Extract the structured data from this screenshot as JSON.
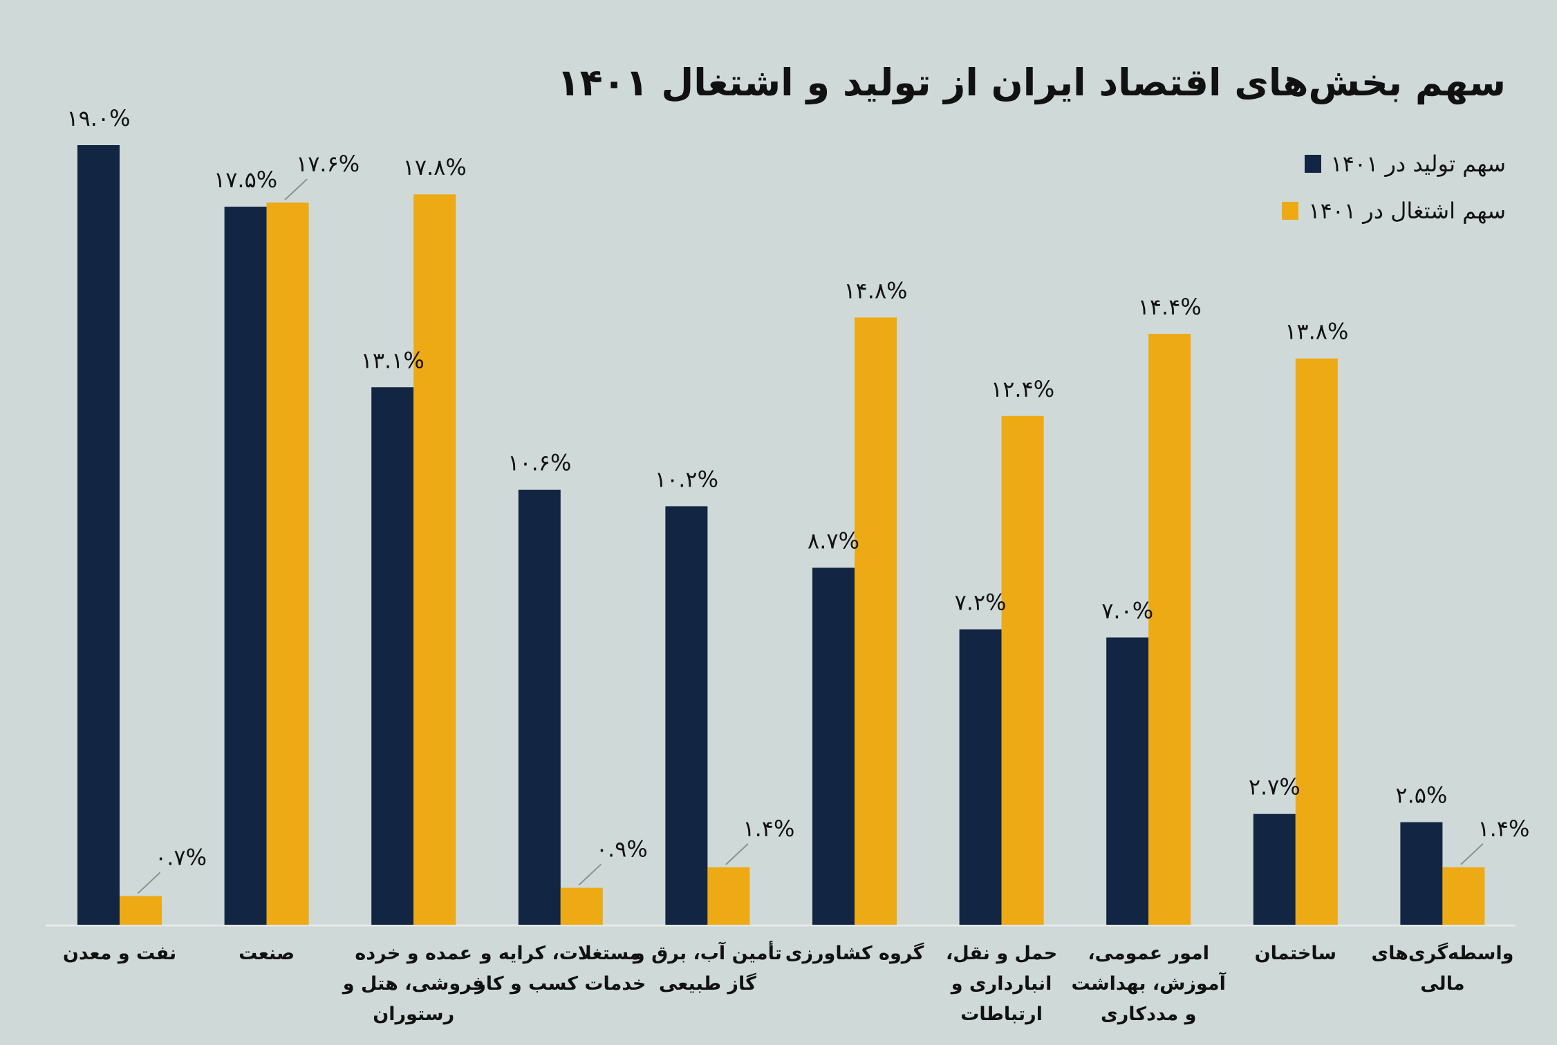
{
  "chart_data": {
    "type": "bar",
    "title": "سهم بخش‌های اقتصاد ایران از تولید و اشتغال ۱۴۰۱",
    "xlabel": "",
    "ylabel": "",
    "ylim": [
      0,
      19.0
    ],
    "grid": false,
    "legend_position": "top-right",
    "categories": [
      [
        "نفت و معدن"
      ],
      [
        "صنعت"
      ],
      [
        "عمده و خرده",
        "فروشی، هتل و",
        "رستوران"
      ],
      [
        "مستغلات، کرایه و",
        "خدمات کسب و کار"
      ],
      [
        "تأمین آب، برق و",
        "گاز طبیعی"
      ],
      [
        "گروه کشاورزی"
      ],
      [
        "حمل و نقل،",
        "انبارداری و",
        "ارتباطات"
      ],
      [
        "امور عمومی،",
        "آموزش، بهداشت",
        "و مددکاری"
      ],
      [
        "ساختمان"
      ],
      [
        "واسطه‌گری‌های",
        "مالی"
      ]
    ],
    "series": [
      {
        "name": "سهم تولید در ۱۴۰۱",
        "color": "#122542",
        "values": [
          19.0,
          17.5,
          13.1,
          10.6,
          10.2,
          8.7,
          7.2,
          7.0,
          2.7,
          2.5
        ],
        "labels": [
          "۱۹.۰%",
          "۱۷.۵%",
          "۱۳.۱%",
          "۱۰.۶%",
          "۱۰.۲%",
          "۸.۷%",
          "۷.۲%",
          "۷.۰%",
          "۲.۷%",
          "۲.۵%"
        ]
      },
      {
        "name": "سهم اشتغال در ۱۴۰۱",
        "color": "#eeaa14",
        "values": [
          0.7,
          17.6,
          17.8,
          0.9,
          1.4,
          14.8,
          12.4,
          14.4,
          13.8,
          1.4
        ],
        "labels": [
          "۰.۷%",
          "۱۷.۶%",
          "۱۷.۸%",
          "۰.۹%",
          "۱.۴%",
          "۱۴.۸%",
          "۱۲.۴%",
          "۱۴.۴%",
          "۱۳.۸%",
          "۱.۴%"
        ]
      }
    ]
  }
}
